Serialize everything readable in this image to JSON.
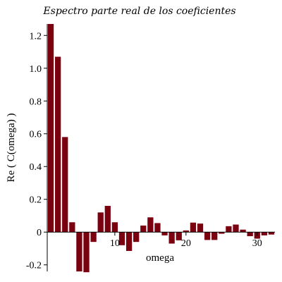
{
  "chart_data": {
    "type": "bar",
    "title": "Espectro parte real de los coeficientes",
    "xlabel": "omega",
    "ylabel": "Re ( C(omega) )",
    "x": [
      1,
      2,
      3,
      4,
      5,
      6,
      7,
      8,
      9,
      10,
      11,
      12,
      13,
      14,
      15,
      16,
      17,
      18,
      19,
      20,
      21,
      22,
      23,
      24,
      25,
      26,
      27,
      28,
      29,
      30,
      31,
      32
    ],
    "values": [
      1.27,
      1.07,
      0.58,
      0.06,
      -0.24,
      -0.245,
      -0.06,
      0.12,
      0.16,
      0.06,
      -0.08,
      -0.115,
      -0.06,
      0.04,
      0.09,
      0.055,
      -0.02,
      -0.07,
      -0.05,
      0.01,
      0.058,
      0.052,
      -0.048,
      -0.048,
      -0.01,
      0.036,
      0.046,
      0.015,
      -0.025,
      -0.04,
      -0.02,
      -0.015
    ],
    "xticks": [
      10,
      20,
      30
    ],
    "yticks": [
      -0.2,
      0,
      0.2,
      0.4,
      0.6,
      0.8,
      1.0,
      1.2
    ],
    "ytick_labels": [
      "-0.2",
      "0",
      "0.2",
      "0.4",
      "0.6",
      "0.8",
      "1.0",
      "1.2"
    ],
    "xlim": [
      0.5,
      32.5
    ],
    "ylim": [
      -0.24,
      1.27
    ],
    "bar_color": "#7a0010",
    "grid": false,
    "legend": "none"
  }
}
